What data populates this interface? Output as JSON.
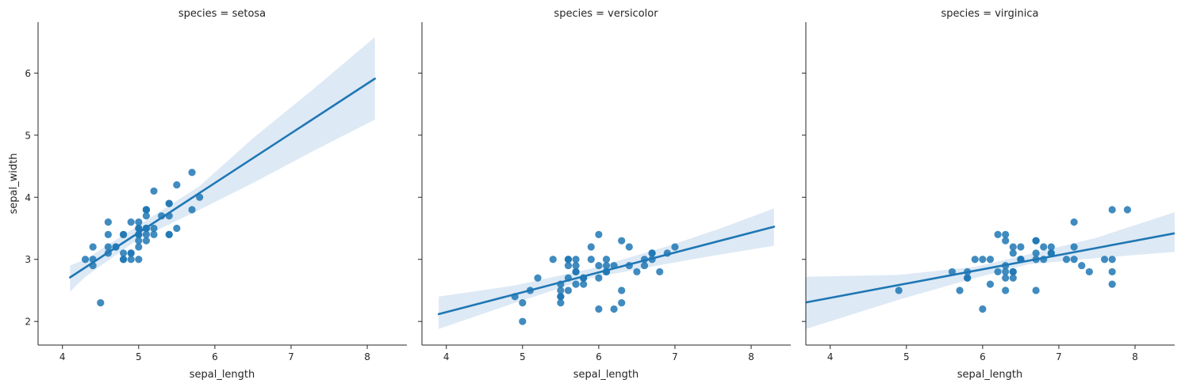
{
  "figure": {
    "marker_color": "#1f77b4",
    "line_color": "#1f77b4",
    "band_color": "#c6dbef"
  },
  "chart_data": [
    {
      "type": "scatter",
      "title": "species = setosa",
      "xlabel": "sepal_length",
      "ylabel": "sepal_width",
      "xlim": [
        3.68,
        8.52
      ],
      "ylim": [
        1.62,
        6.82
      ],
      "xticks": [
        4,
        5,
        6,
        7,
        8
      ],
      "yticks": [
        2,
        3,
        4,
        5,
        6
      ],
      "grid": false,
      "x": [
        5.1,
        4.9,
        4.7,
        4.6,
        5.0,
        5.4,
        4.6,
        5.0,
        4.4,
        4.9,
        5.4,
        4.8,
        4.8,
        4.3,
        5.8,
        5.7,
        5.4,
        5.1,
        5.7,
        5.1,
        5.4,
        5.1,
        4.6,
        5.1,
        4.8,
        5.0,
        5.0,
        5.2,
        5.2,
        4.7,
        4.8,
        5.4,
        5.2,
        5.5,
        4.9,
        5.0,
        5.5,
        4.9,
        4.4,
        5.1,
        5.0,
        4.5,
        4.4,
        5.0,
        5.1,
        4.8,
        5.1,
        4.6,
        5.3,
        5.0
      ],
      "y": [
        3.5,
        3.0,
        3.2,
        3.1,
        3.6,
        3.9,
        3.4,
        3.4,
        2.9,
        3.1,
        3.7,
        3.4,
        3.0,
        3.0,
        4.0,
        4.4,
        3.9,
        3.5,
        3.8,
        3.8,
        3.4,
        3.7,
        3.6,
        3.3,
        3.4,
        3.0,
        3.4,
        3.5,
        3.4,
        3.2,
        3.1,
        3.4,
        4.1,
        4.2,
        3.1,
        3.2,
        3.5,
        3.6,
        3.0,
        3.4,
        3.5,
        2.3,
        3.2,
        3.5,
        3.8,
        3.0,
        3.8,
        3.2,
        3.7,
        3.3
      ],
      "regression": {
        "x_range": [
          4.1,
          8.1
        ],
        "slope": 0.8,
        "intercept": -0.57,
        "ci_x": [
          4.1,
          4.3,
          5.0,
          5.8,
          6.5,
          7.3,
          8.1
        ],
        "ci_lower": [
          2.48,
          2.72,
          3.33,
          3.8,
          4.23,
          4.75,
          5.25
        ],
        "ci_upper": [
          2.9,
          3.0,
          3.55,
          4.18,
          4.95,
          5.75,
          6.58
        ]
      }
    },
    {
      "type": "scatter",
      "title": "species = versicolor",
      "xlabel": "sepal_length",
      "ylabel": "",
      "xlim": [
        3.68,
        8.52
      ],
      "ylim": [
        1.62,
        6.82
      ],
      "xticks": [
        4,
        5,
        6,
        7,
        8
      ],
      "yticks": [
        2,
        3,
        4,
        5,
        6
      ],
      "grid": false,
      "x": [
        7.0,
        6.4,
        6.9,
        5.5,
        6.5,
        5.7,
        6.3,
        4.9,
        6.6,
        5.2,
        5.0,
        5.9,
        6.0,
        6.1,
        5.6,
        6.7,
        5.6,
        5.8,
        6.2,
        5.6,
        5.9,
        6.1,
        6.3,
        6.1,
        6.4,
        6.6,
        6.8,
        6.7,
        6.0,
        5.7,
        5.5,
        5.5,
        5.8,
        6.0,
        5.4,
        6.0,
        6.7,
        6.3,
        5.6,
        5.5,
        5.5,
        6.1,
        5.8,
        5.0,
        5.6,
        5.7,
        5.7,
        6.2,
        5.1,
        5.7
      ],
      "y": [
        3.2,
        3.2,
        3.1,
        2.3,
        2.8,
        2.8,
        3.3,
        2.4,
        2.9,
        2.7,
        2.0,
        3.0,
        2.2,
        2.9,
        2.9,
        3.1,
        3.0,
        2.7,
        2.2,
        2.5,
        3.2,
        2.8,
        2.5,
        2.8,
        2.9,
        3.0,
        2.8,
        3.0,
        2.9,
        2.6,
        2.4,
        2.4,
        2.7,
        2.7,
        3.0,
        3.4,
        3.1,
        2.3,
        3.0,
        2.5,
        2.6,
        3.0,
        2.6,
        2.3,
        2.7,
        3.0,
        2.9,
        2.9,
        2.5,
        2.8
      ],
      "regression": {
        "x_range": [
          3.9,
          8.3
        ],
        "slope": 0.32,
        "intercept": 0.87,
        "ci_x": [
          3.9,
          4.9,
          5.9,
          6.9,
          7.6,
          8.3
        ],
        "ci_lower": [
          1.88,
          2.3,
          2.7,
          2.93,
          3.08,
          3.22
        ],
        "ci_upper": [
          2.4,
          2.58,
          2.85,
          3.21,
          3.5,
          3.82
        ]
      }
    },
    {
      "type": "scatter",
      "title": "species = virginica",
      "xlabel": "sepal_length",
      "ylabel": "",
      "xlim": [
        3.68,
        8.52
      ],
      "ylim": [
        1.62,
        6.82
      ],
      "xticks": [
        4,
        5,
        6,
        7,
        8
      ],
      "yticks": [
        2,
        3,
        4,
        5,
        6
      ],
      "grid": false,
      "x": [
        6.3,
        5.8,
        7.1,
        6.3,
        6.5,
        7.6,
        4.9,
        7.3,
        6.7,
        7.2,
        6.5,
        6.4,
        6.8,
        5.7,
        5.8,
        6.4,
        6.5,
        7.7,
        7.7,
        6.0,
        6.9,
        5.6,
        7.7,
        6.3,
        6.7,
        7.2,
        6.2,
        6.1,
        6.4,
        7.2,
        7.4,
        7.9,
        6.4,
        6.3,
        6.1,
        7.7,
        6.3,
        6.4,
        6.0,
        6.9,
        6.7,
        6.9,
        5.8,
        6.8,
        6.7,
        6.7,
        6.3,
        6.5,
        6.2,
        5.9
      ],
      "y": [
        3.3,
        2.7,
        3.0,
        2.9,
        3.0,
        3.0,
        2.5,
        2.9,
        2.5,
        3.6,
        3.2,
        2.7,
        3.0,
        2.5,
        2.8,
        3.2,
        3.0,
        3.8,
        2.6,
        2.2,
        3.2,
        2.8,
        2.8,
        2.7,
        3.3,
        3.2,
        2.8,
        3.0,
        2.8,
        3.0,
        2.8,
        3.8,
        2.8,
        2.8,
        2.6,
        3.0,
        3.4,
        3.1,
        3.0,
        3.1,
        3.1,
        3.1,
        2.7,
        3.2,
        3.3,
        3.0,
        2.5,
        3.0,
        3.4,
        3.0
      ],
      "regression": {
        "x_range": [
          3.68,
          8.52
        ],
        "slope": 0.23,
        "intercept": 1.46,
        "ci_x": [
          3.68,
          4.9,
          5.9,
          6.6,
          7.5,
          8.52
        ],
        "ci_lower": [
          1.88,
          2.35,
          2.7,
          2.92,
          3.02,
          3.12
        ],
        "ci_upper": [
          2.72,
          2.75,
          2.88,
          3.08,
          3.35,
          3.76
        ]
      }
    }
  ]
}
